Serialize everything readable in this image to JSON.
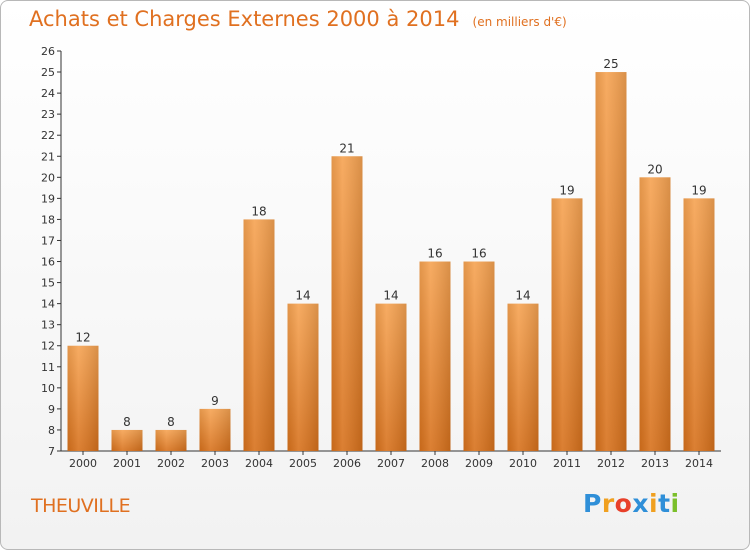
{
  "chart_data": {
    "type": "bar",
    "title": "Achats et Charges Externes 2000 à 2014",
    "subtitle": "(en milliers d'€)",
    "categories": [
      "2000",
      "2001",
      "2002",
      "2003",
      "2004",
      "2005",
      "2006",
      "2007",
      "2008",
      "2009",
      "2010",
      "2011",
      "2012",
      "2013",
      "2014"
    ],
    "values": [
      12,
      8,
      8,
      9,
      18,
      14,
      21,
      14,
      16,
      16,
      14,
      19,
      25,
      20,
      19
    ],
    "ylim": [
      7,
      26
    ],
    "ytick_step": 1,
    "grid": false,
    "bar_color": "#f08a2a"
  },
  "town": "THEUVILLE",
  "logo": {
    "text": "Proxiti",
    "letters": [
      "P",
      "r",
      "o",
      "x",
      "i",
      "t",
      "i"
    ],
    "colors": [
      "#2f8fd8",
      "#f0a020",
      "#e8402a",
      "#2f8fd8",
      "#f0a020",
      "#2f8fd8",
      "#7bbf2a"
    ]
  }
}
